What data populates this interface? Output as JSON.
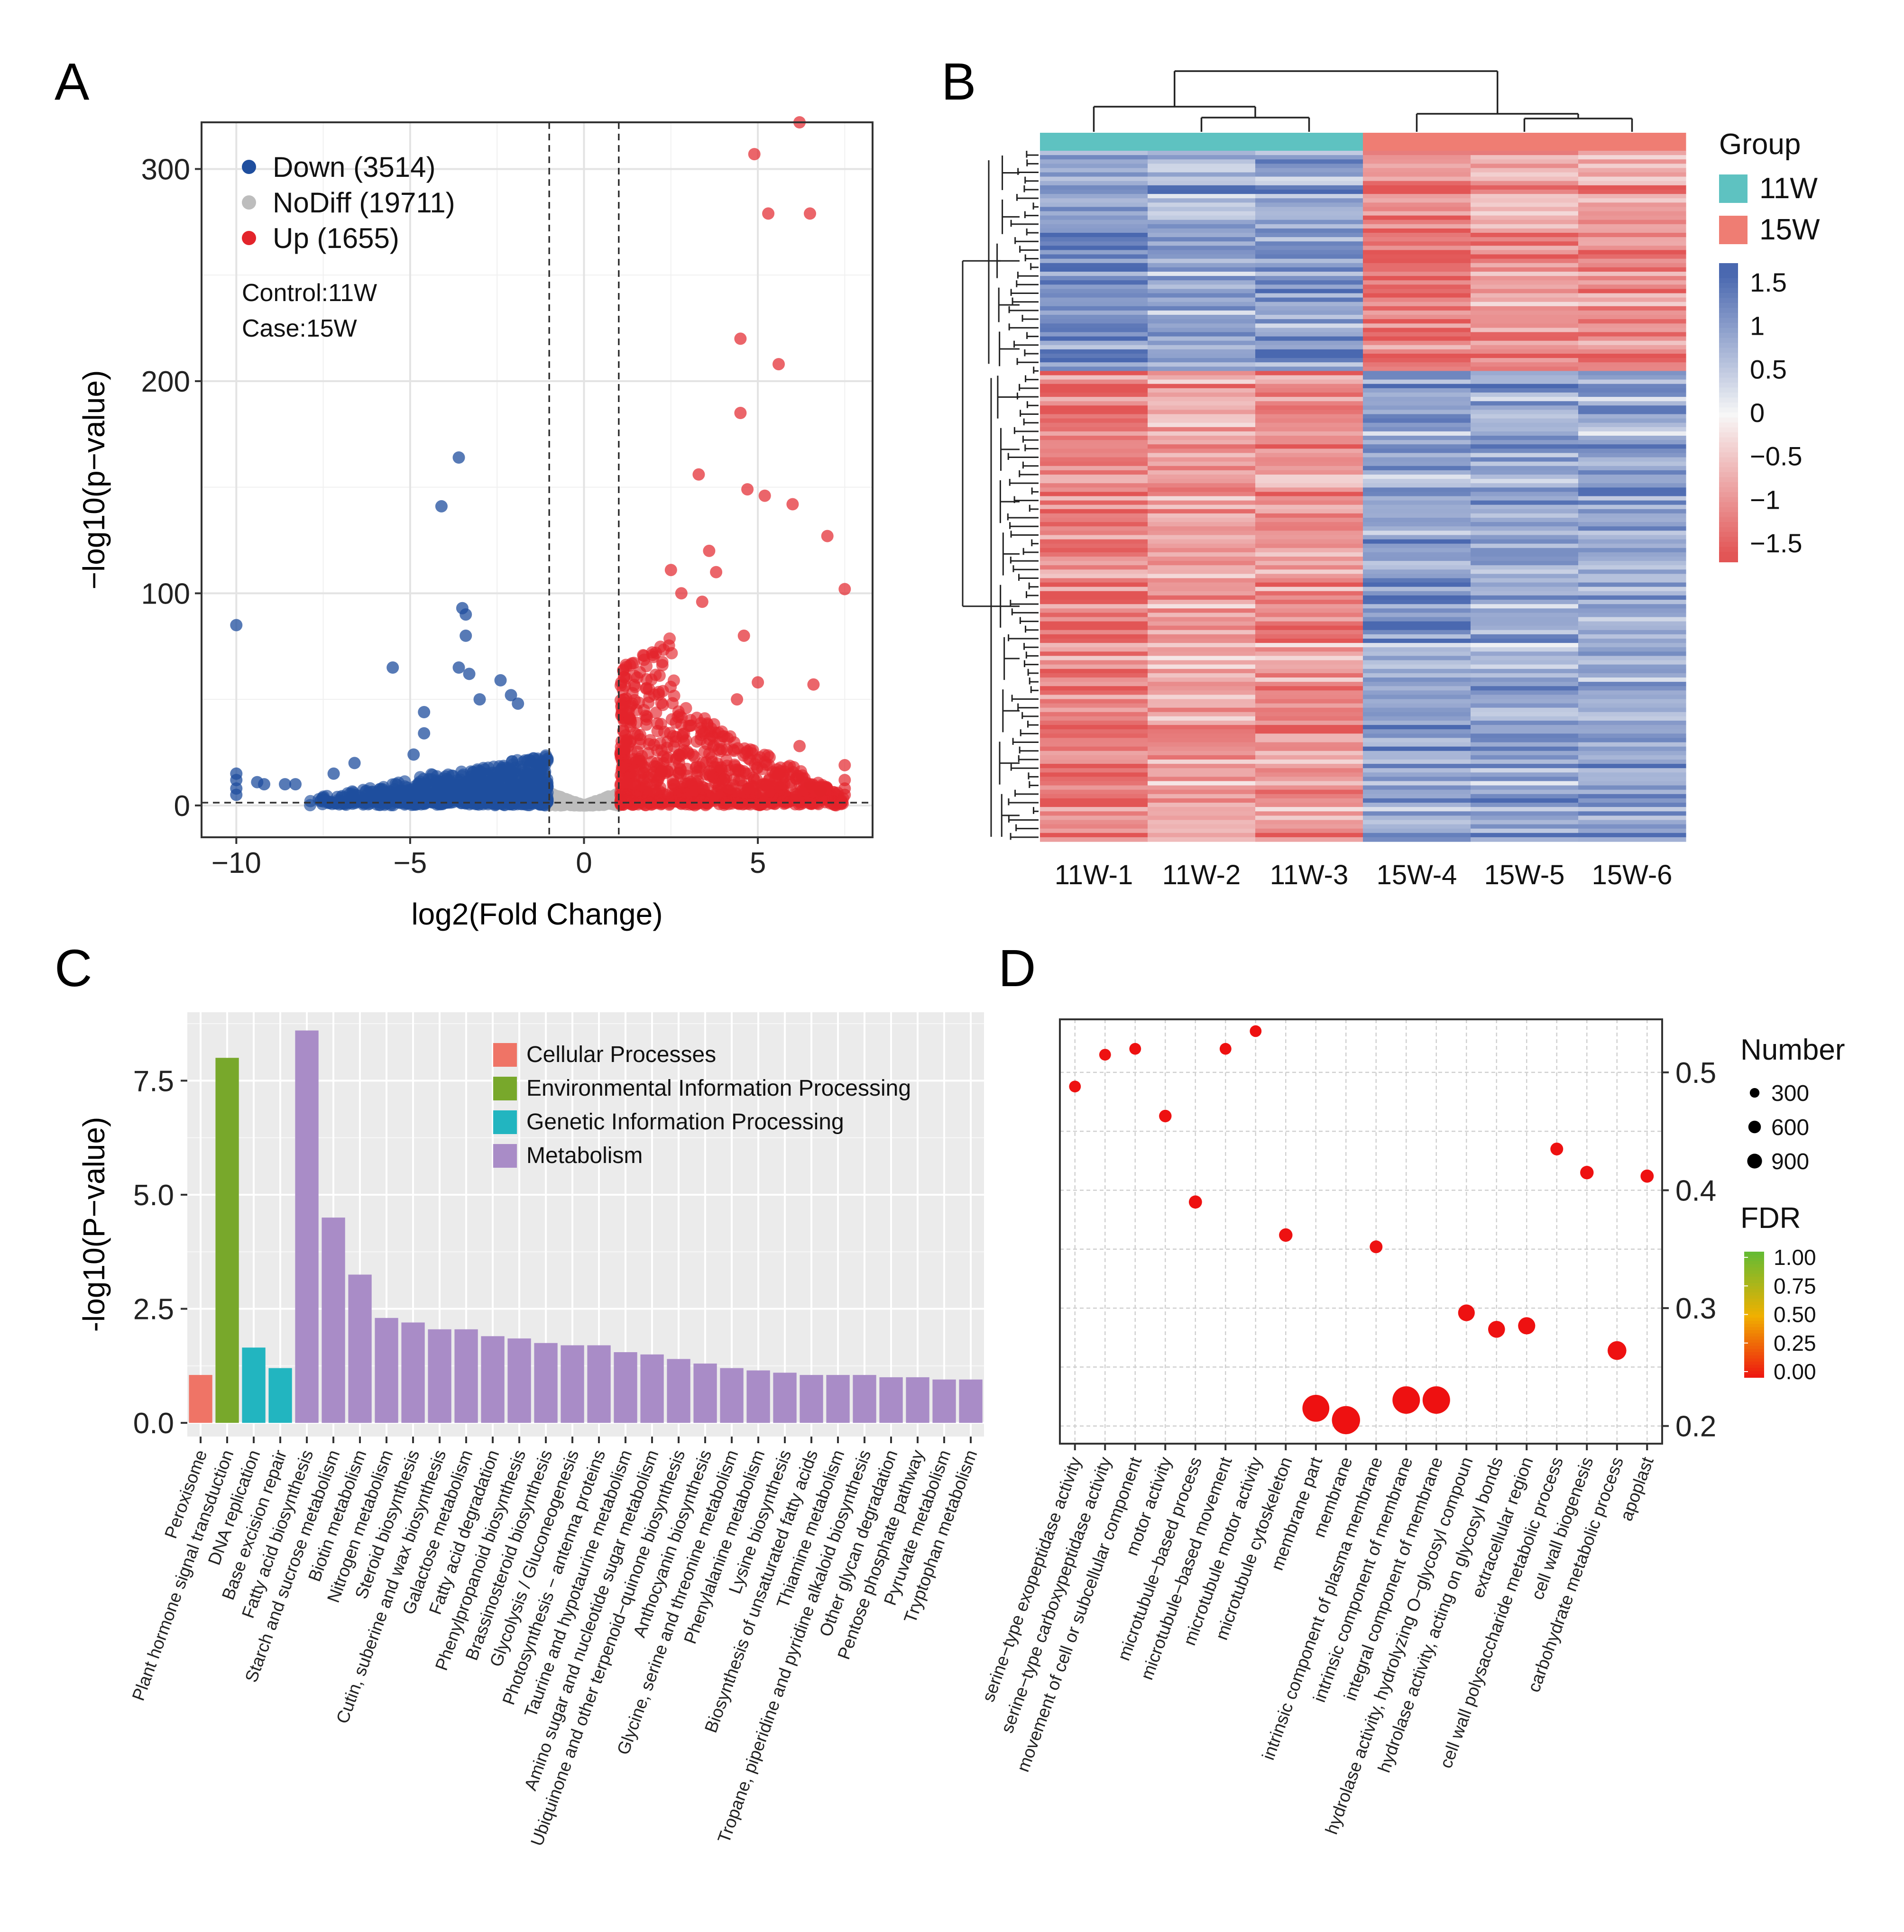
{
  "panel_labels": [
    "A",
    "B",
    "C",
    "D"
  ],
  "colors": {
    "down": "#1f4e9e",
    "nodiff": "#bdbdbd",
    "up": "#e3242b",
    "group_11w": "#5ec2c1",
    "group_15w": "#ef7d73",
    "heat_high": "#4a68b0",
    "heat_mid": "#f7f7f7",
    "heat_low": "#e25555",
    "cat_cellular": "#ef7466",
    "cat_env": "#78a82b",
    "cat_genetic": "#22b5c0",
    "cat_metabolism": "#a98cc7",
    "fdr_low": "#ee1111",
    "fdr_mid": "#f0b000",
    "fdr_high": "#66bb33"
  },
  "chart_data": [
    {
      "id": "A",
      "type": "scatter",
      "title": "",
      "xlabel": "log2(Fold Change)",
      "ylabel": "−log10(p−value)",
      "xlim": [
        -11,
        8.3
      ],
      "ylim": [
        -15,
        322
      ],
      "xticks": [
        -10,
        -5,
        0,
        5
      ],
      "xtick_labels": [
        "−10",
        "−5",
        "0",
        "5"
      ],
      "yticks": [
        0,
        100,
        200,
        300
      ],
      "ytick_labels": [
        "0",
        "100",
        "200",
        "300"
      ],
      "thresholds": {
        "x": [
          -1,
          1
        ],
        "y": 1.3
      },
      "legend": [
        {
          "key": "down",
          "label": "Down (3514)"
        },
        {
          "key": "nodiff",
          "label": "NoDiff (19711)"
        },
        {
          "key": "up",
          "label": "Up (1655)"
        }
      ],
      "annotations": [
        "Control:11W",
        "Case:15W"
      ],
      "highlight_points": {
        "down": [
          [
            -10,
            85
          ],
          [
            -10,
            15
          ],
          [
            -10,
            12
          ],
          [
            -10,
            8
          ],
          [
            -10,
            5
          ],
          [
            -9.4,
            11
          ],
          [
            -9.2,
            10
          ],
          [
            -8.6,
            10
          ],
          [
            -8.3,
            10
          ],
          [
            -7.2,
            15
          ],
          [
            -6.6,
            20
          ],
          [
            -5.5,
            65
          ],
          [
            -4.9,
            24
          ],
          [
            -4.6,
            34
          ],
          [
            -4.6,
            44
          ],
          [
            -4.1,
            141
          ],
          [
            -3.6,
            164
          ],
          [
            -3.6,
            65
          ],
          [
            -3.5,
            93
          ],
          [
            -3.4,
            90
          ],
          [
            -3.4,
            80
          ],
          [
            -3.3,
            62
          ],
          [
            -3.0,
            50
          ],
          [
            -2.4,
            59
          ],
          [
            -2.1,
            52
          ],
          [
            -1.9,
            48
          ]
        ],
        "up": [
          [
            6.2,
            322
          ],
          [
            4.9,
            307
          ],
          [
            5.3,
            279
          ],
          [
            6.5,
            279
          ],
          [
            4.5,
            220
          ],
          [
            5.6,
            208
          ],
          [
            4.5,
            185
          ],
          [
            3.3,
            156
          ],
          [
            4.7,
            149
          ],
          [
            5.2,
            146
          ],
          [
            6.0,
            142
          ],
          [
            7.0,
            127
          ],
          [
            7.5,
            102
          ],
          [
            3.6,
            120
          ],
          [
            3.8,
            110
          ],
          [
            2.5,
            111
          ],
          [
            2.8,
            100
          ],
          [
            3.4,
            96
          ],
          [
            4.6,
            80
          ],
          [
            6.6,
            57
          ],
          [
            5.0,
            58
          ],
          [
            4.4,
            50
          ],
          [
            6.2,
            28
          ],
          [
            7.5,
            19
          ],
          [
            7.5,
            12
          ],
          [
            7.5,
            8
          ],
          [
            7.5,
            5
          ],
          [
            6.5,
            10
          ],
          [
            6.8,
            7
          ]
        ]
      },
      "bulk_clouds": {
        "down": {
          "x": [
            -8,
            -1
          ],
          "peak": -2.5
        },
        "nodiff": {
          "x": [
            -1,
            1
          ]
        },
        "up": {
          "x": [
            1,
            7.5
          ],
          "peak": 2
        }
      }
    },
    {
      "id": "B",
      "type": "heatmap",
      "title": "",
      "columns": [
        "11W-1",
        "11W-2",
        "11W-3",
        "15W-4",
        "15W-5",
        "15W-6"
      ],
      "column_groups": [
        "11W",
        "11W",
        "11W",
        "15W",
        "15W",
        "15W"
      ],
      "legend_title": "Group",
      "groups": [
        "11W",
        "15W"
      ],
      "color_scale": {
        "min": -1.5,
        "max": 1.5,
        "ticks": [
          1.5,
          1,
          0.5,
          0,
          -0.5,
          -1,
          -1.5
        ],
        "tick_labels": [
          "1.5",
          "1",
          "0.5",
          "0",
          "−0.5",
          "−1",
          "−1.5"
        ]
      },
      "row_blocks": [
        {
          "fraction": 0.32,
          "means": [
            1.1,
            0.8,
            0.9,
            -1.2,
            -0.9,
            -0.9
          ]
        },
        {
          "fraction": 0.68,
          "means": [
            -1.1,
            -0.8,
            -0.9,
            0.9,
            0.8,
            0.8
          ]
        }
      ],
      "column_dendrogram": {
        "merges": [
          [
            1,
            2
          ],
          [
            0,
            "12"
          ],
          [
            4,
            5
          ],
          [
            3,
            "45"
          ],
          [
            "012",
            "345"
          ]
        ]
      }
    },
    {
      "id": "C",
      "type": "bar",
      "title": "",
      "xlabel": "",
      "ylabel": "-log10(P−value)",
      "ylim": [
        -0.3,
        9.0
      ],
      "yticks": [
        0.0,
        2.5,
        5.0,
        7.5
      ],
      "ytick_labels": [
        "0.0",
        "2.5",
        "5.0",
        "7.5"
      ],
      "legend": [
        {
          "key": "cat_cellular",
          "label": "Cellular Processes"
        },
        {
          "key": "cat_env",
          "label": "Environmental Information Processing"
        },
        {
          "key": "cat_genetic",
          "label": "Genetic Information Processing"
        },
        {
          "key": "cat_metabolism",
          "label": "Metabolism"
        }
      ],
      "categories": [
        "Peroxisome",
        "Plant hormone signal transduction",
        "DNA replication",
        "Base excision repair",
        "Fatty acid biosynthesis",
        "Starch and sucrose metabolism",
        "Biotin metabolism",
        "Nitrogen metabolism",
        "Steroid biosynthesis",
        "Cutin, suberine and wax biosynthesis",
        "Galactose metabolism",
        "Fatty acid degradation",
        "Phenylpropanoid biosynthesis",
        "Brassinosteroid biosynthesis",
        "Glycolysis / Gluconeogenesis",
        "Photosynthesis − antenna proteins",
        "Taurine and hypotaurine metabolism",
        "Amino sugar and nucleotide sugar metabolism",
        "Ubiquinone and other terpenoid−quinone biosynthesis",
        "Anthocyanin biosynthesis",
        "Glycine, serine and threonine metabolism",
        "Phenylalanine metabolism",
        "Lysine biosynthesis",
        "Biosynthesis of unsaturated fatty acids",
        "Thiamine metabolism",
        "Tropane, piperidine and pyridine alkaloid biosynthesis",
        "Other glycan degradation",
        "Pentose phosphate pathway",
        "Pyruvate metabolism",
        "Tryptophan metabolism"
      ],
      "values": [
        1.05,
        8.0,
        1.65,
        1.2,
        8.6,
        4.5,
        3.25,
        2.3,
        2.2,
        2.05,
        2.05,
        1.9,
        1.85,
        1.75,
        1.7,
        1.7,
        1.55,
        1.5,
        1.4,
        1.3,
        1.2,
        1.15,
        1.1,
        1.05,
        1.05,
        1.05,
        1.0,
        1.0,
        0.95,
        0.95
      ],
      "groups": [
        "cat_cellular",
        "cat_env",
        "cat_genetic",
        "cat_genetic",
        "cat_metabolism",
        "cat_metabolism",
        "cat_metabolism",
        "cat_metabolism",
        "cat_metabolism",
        "cat_metabolism",
        "cat_metabolism",
        "cat_metabolism",
        "cat_metabolism",
        "cat_metabolism",
        "cat_metabolism",
        "cat_metabolism",
        "cat_metabolism",
        "cat_metabolism",
        "cat_metabolism",
        "cat_metabolism",
        "cat_metabolism",
        "cat_metabolism",
        "cat_metabolism",
        "cat_metabolism",
        "cat_metabolism",
        "cat_metabolism",
        "cat_metabolism",
        "cat_metabolism",
        "cat_metabolism",
        "cat_metabolism"
      ]
    },
    {
      "id": "D",
      "type": "scatter",
      "title": "",
      "xlabel": "",
      "ylabel": "",
      "y_axis_side": "right",
      "ylim": [
        0.185,
        0.545
      ],
      "yticks": [
        0.2,
        0.3,
        0.4,
        0.5
      ],
      "ytick_labels": [
        "0.2",
        "0.3",
        "0.4",
        "0.5"
      ],
      "size_legend_title": "Number",
      "size_legend": [
        {
          "value": 300,
          "label": "300"
        },
        {
          "value": 600,
          "label": "600"
        },
        {
          "value": 900,
          "label": "900"
        }
      ],
      "color_legend_title": "FDR",
      "color_legend_ticks": [
        1.0,
        0.75,
        0.5,
        0.25,
        0.0
      ],
      "color_legend_labels": [
        "1.00",
        "0.75",
        "0.50",
        "0.25",
        "0.00"
      ],
      "categories": [
        "serine−type exopeptidase activity",
        "serine−type carboxypeptidase activity",
        "movement of cell or subcellular component",
        "motor activity",
        "microtubule−based process",
        "microtubule−based movement",
        "microtubule motor activity",
        "microtubule cytoskeleton",
        "membrane part",
        "membrane",
        "intrinsic component of plasma membrane",
        "intrinsic component of membrane",
        "integral component of membrane",
        "hydrolase activity, hydrolyzing O−glycosyl compoun",
        "hydrolase activity, acting on glycosyl bonds",
        "extracellular region",
        "cell wall polysaccharide metabolic process",
        "cell wall biogenesis",
        "carbohydrate metabolic process",
        "apoplast"
      ],
      "y": [
        0.488,
        0.515,
        0.52,
        0.463,
        0.39,
        0.52,
        0.535,
        0.362,
        0.215,
        0.205,
        0.352,
        0.222,
        0.222,
        0.296,
        0.282,
        0.285,
        0.435,
        0.415,
        0.264,
        0.412
      ],
      "number": [
        90,
        90,
        90,
        110,
        130,
        90,
        90,
        140,
        900,
        1000,
        120,
        950,
        950,
        260,
        270,
        280,
        120,
        140,
        360,
        130
      ],
      "fdr": [
        0,
        0,
        0,
        0,
        0,
        0,
        0,
        0,
        0,
        0,
        0,
        0,
        0,
        0,
        0,
        0,
        0,
        0,
        0,
        0
      ]
    }
  ]
}
